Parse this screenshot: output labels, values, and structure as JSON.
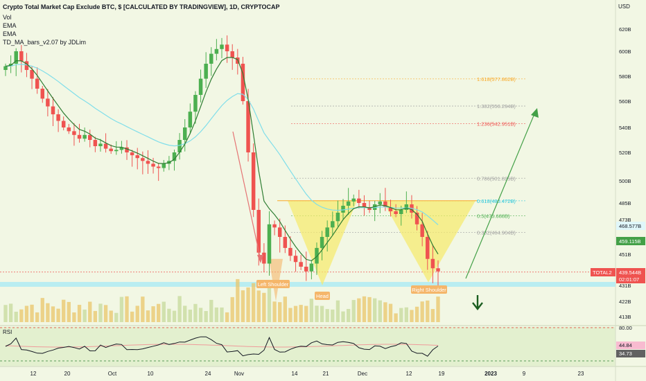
{
  "header": {
    "title": "Crypto Total Market Cap Exclude BTC, $ [CALCULATED BY TRADINGVIEW], 1D, CRYPTOCAP",
    "indicators": [
      "Vol",
      "EMA",
      "EMA",
      "TD_MA_bars_v2.07 by JDLim"
    ]
  },
  "axis": {
    "currency": "USD"
  },
  "pattern_labels": {
    "left_shoulder": "Left Shoulder",
    "head": "Head",
    "right_shoulder": "Right Shoulder"
  },
  "price_tags": {
    "total2_label": "TOTAL2",
    "total2_price": "439.544B",
    "countdown": "02:01:07",
    "ema_fast": "459.115B",
    "ema_slow": "468.577B"
  },
  "rsi": {
    "label": "RSI",
    "upper": "80.00",
    "value": "44.84",
    "ema": "34.73"
  },
  "colors": {
    "bull": "#26a69a",
    "green_candle": "#4caf50",
    "bear": "#ef5350",
    "pattern_fill": "#f7e96a",
    "ema_line": "#4caf50",
    "ema_slow_line": "#80deea",
    "arrow_up": "#43a047",
    "arrow_down": "#e57373",
    "neckline": "#f9a825",
    "support_band": "#b2ebf2",
    "rsi_line": "#131722",
    "rsi_ma": "#ef9a9a"
  },
  "chart_data": {
    "type": "candlestick",
    "symbol": "TOTAL2",
    "timeframe": "1D",
    "x_tick_labels": [
      "12",
      "20",
      "Oct",
      "10",
      "24",
      "Nov",
      "14",
      "21",
      "Dec",
      "12",
      "19",
      "2023",
      "9",
      "23"
    ],
    "y_tick_labels": [
      "620B",
      "600B",
      "580B",
      "560B",
      "540B",
      "520B",
      "500B",
      "485B",
      "473B",
      "451B",
      "431B",
      "422B",
      "413B"
    ],
    "fibonacci_levels": [
      {
        "ratio": "1.618",
        "value": "577.862B"
      },
      {
        "ratio": "1.382",
        "value": "556.294B"
      },
      {
        "ratio": "1.236",
        "value": "542.951B"
      },
      {
        "ratio": "0.786",
        "value": "501.825B"
      },
      {
        "ratio": "0.618",
        "value": "486.472B"
      },
      {
        "ratio": "0.5",
        "value": "475.688B"
      },
      {
        "ratio": "0.382",
        "value": "464.904B"
      }
    ],
    "pattern": "inverse head and shoulders",
    "closes_approx": [
      588,
      590,
      600,
      592,
      585,
      578,
      570,
      562,
      556,
      550,
      545,
      540,
      537,
      534,
      531,
      534,
      530,
      525,
      527,
      523,
      521,
      522,
      524,
      520,
      518,
      516,
      514,
      512,
      510,
      509,
      512,
      514,
      520,
      530,
      540,
      552,
      565,
      578,
      590,
      598,
      602,
      606,
      600,
      595,
      590,
      560,
      520,
      480,
      452,
      445,
      470,
      468,
      462,
      455,
      450,
      446,
      443,
      440,
      445,
      455,
      462,
      468,
      472,
      478,
      483,
      486,
      488,
      485,
      482,
      480,
      484,
      486,
      482,
      479,
      477,
      480,
      484,
      478,
      470,
      462,
      448,
      442,
      440
    ],
    "last_price": 439.544,
    "ema_fast_last": 459.115,
    "ema_slow_last": 468.577,
    "rsi_value": 44.84,
    "rsi_ema": 34.73,
    "rsi_upper": 80
  }
}
